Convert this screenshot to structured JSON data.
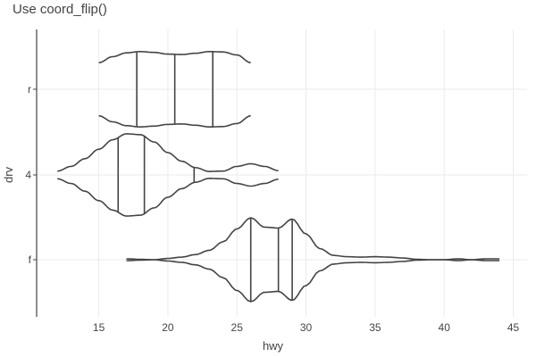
{
  "chart_data": {
    "type": "violin",
    "title": "Use coord_flip()",
    "xlabel": "hwy",
    "ylabel": "drv",
    "xlim": [
      10.5,
      46
    ],
    "x_ticks": [
      15,
      20,
      25,
      30,
      35,
      40,
      45
    ],
    "x_tick_labels": [
      "15",
      "20",
      "25",
      "30",
      "35",
      "40",
      "45"
    ],
    "categories": [
      "f",
      "4",
      "r"
    ],
    "quantile_lines": true,
    "grid": true,
    "legend": "none",
    "colors": {
      "outline": "#444444",
      "grid": "#ebebeb",
      "text": "#444444",
      "background": "#ffffff"
    },
    "series": [
      {
        "category": "r",
        "range": [
          15,
          26
        ],
        "quantiles": [
          17.75,
          20.5,
          23.25
        ],
        "density": [
          [
            15,
            0.62
          ],
          [
            16,
            0.76
          ],
          [
            17,
            0.85
          ],
          [
            18,
            0.88
          ],
          [
            19,
            0.86
          ],
          [
            20,
            0.82
          ],
          [
            21,
            0.81
          ],
          [
            22,
            0.84
          ],
          [
            23,
            0.88
          ],
          [
            24,
            0.87
          ],
          [
            25,
            0.8
          ],
          [
            26,
            0.62
          ]
        ]
      },
      {
        "category": "4",
        "range": [
          12,
          28
        ],
        "quantiles": [
          16.4,
          18.3,
          21.9
        ],
        "density": [
          [
            12,
            0.09
          ],
          [
            13,
            0.2
          ],
          [
            14,
            0.38
          ],
          [
            15,
            0.6
          ],
          [
            16,
            0.82
          ],
          [
            17,
            0.96
          ],
          [
            18,
            0.94
          ],
          [
            19,
            0.77
          ],
          [
            20,
            0.52
          ],
          [
            21,
            0.32
          ],
          [
            22,
            0.17
          ],
          [
            23,
            0.08
          ],
          [
            24,
            0.09
          ],
          [
            25,
            0.2
          ],
          [
            26,
            0.26
          ],
          [
            27,
            0.2
          ],
          [
            28,
            0.1
          ]
        ]
      },
      {
        "category": "f",
        "range": [
          17,
          44
        ],
        "quantiles": [
          26,
          28,
          29
        ],
        "density": [
          [
            17,
            0.02
          ],
          [
            18,
            0.01
          ],
          [
            19,
            0.0
          ],
          [
            20,
            0.03
          ],
          [
            21,
            0.06
          ],
          [
            22,
            0.12
          ],
          [
            23,
            0.22
          ],
          [
            24,
            0.42
          ],
          [
            25,
            0.72
          ],
          [
            26,
            0.98
          ],
          [
            27,
            0.76
          ],
          [
            28,
            0.74
          ],
          [
            29,
            0.95
          ],
          [
            30,
            0.6
          ],
          [
            31,
            0.26
          ],
          [
            32,
            0.1
          ],
          [
            33,
            0.07
          ],
          [
            34,
            0.06
          ],
          [
            35,
            0.07
          ],
          [
            36,
            0.06
          ],
          [
            37,
            0.04
          ],
          [
            38,
            0.01
          ],
          [
            39,
            0.0
          ],
          [
            40,
            0.0
          ],
          [
            41,
            0.02
          ],
          [
            42,
            0.0
          ],
          [
            43,
            0.02
          ],
          [
            44,
            0.02
          ]
        ]
      }
    ]
  }
}
